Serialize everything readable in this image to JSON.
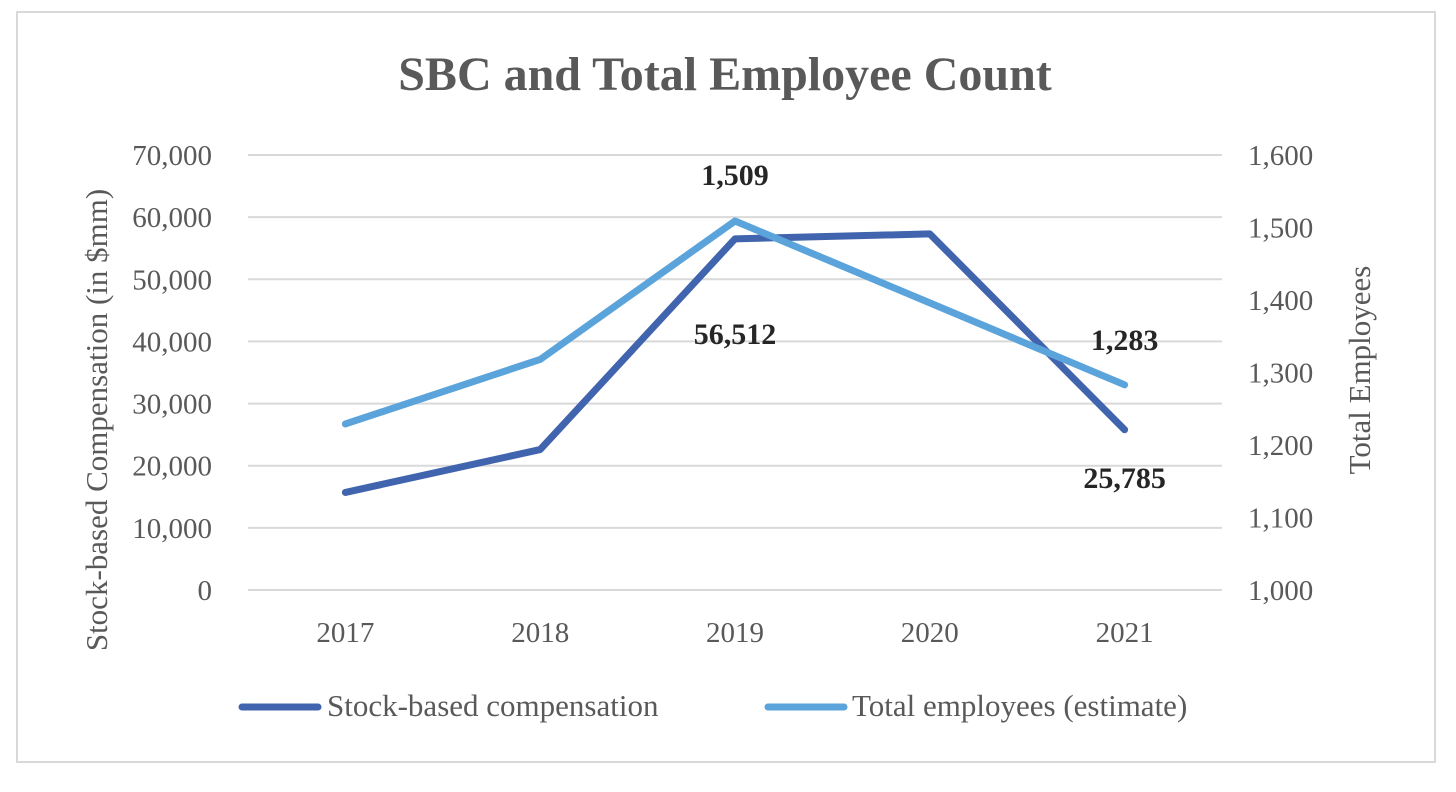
{
  "chart_data": {
    "type": "line",
    "title": "SBC and Total Employee Count",
    "categories": [
      "2017",
      "2018",
      "2019",
      "2020",
      "2021"
    ],
    "y_left": {
      "label": "Stock-based Compensation (in $mm)",
      "range": [
        0,
        70000
      ],
      "ticks": [
        "0",
        "10,000",
        "20,000",
        "30,000",
        "40,000",
        "50,000",
        "60,000",
        "70,000"
      ]
    },
    "y_right": {
      "label": "Total Employees",
      "range": [
        1000,
        1600
      ],
      "ticks": [
        "1,000",
        "1,100",
        "1,200",
        "1,300",
        "1,400",
        "1,500",
        "1,600"
      ]
    },
    "series": [
      {
        "name": "Stock-based compensation",
        "axis": "left",
        "color": "#4064ad",
        "values": [
          15700,
          22600,
          56512,
          57300,
          25785
        ],
        "data_labels": [
          "",
          "",
          "56,512",
          "",
          "25,785"
        ]
      },
      {
        "name": "Total employees (estimate)",
        "axis": "right",
        "color": "#5ba3db",
        "values": [
          1229,
          1318,
          1509,
          1396,
          1283
        ],
        "data_labels": [
          "",
          "",
          "1,509",
          "",
          "1,283"
        ]
      }
    ],
    "grid": true,
    "legend": "bottom"
  }
}
